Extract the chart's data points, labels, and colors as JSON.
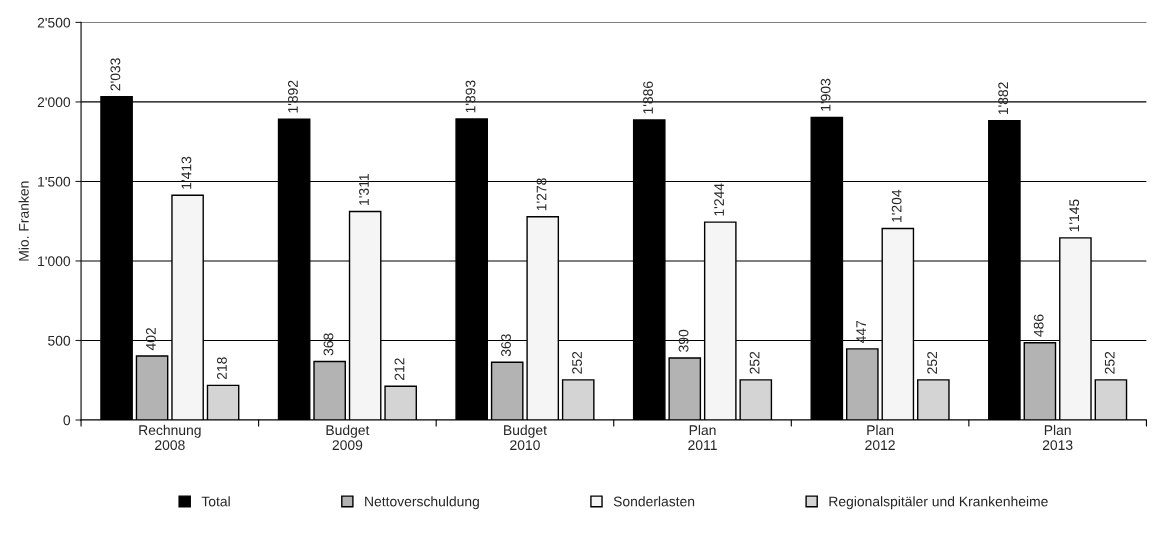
{
  "chart_data": {
    "type": "bar",
    "ylabel": "Mio. Franken",
    "categories": [
      "Rechnung\n2008",
      "Budget\n2009",
      "Budget\n2010",
      "Plan\n2011",
      "Plan\n2012",
      "Plan\n2013"
    ],
    "series": [
      {
        "name": "Total",
        "color": "#000000",
        "values": [
          2033,
          1892,
          1893,
          1886,
          1903,
          1882
        ],
        "value_labels": [
          "2'033",
          "1'892",
          "1'893",
          "1'886",
          "1'903",
          "1'882"
        ]
      },
      {
        "name": "Nettoverschuldung",
        "color": "#b3b3b3",
        "values": [
          402,
          368,
          363,
          390,
          447,
          486
        ],
        "value_labels": [
          "402",
          "368",
          "363",
          "390",
          "447",
          "486"
        ]
      },
      {
        "name": "Sonderlasten",
        "color": "#f5f5f5",
        "values": [
          1413,
          1311,
          1278,
          1244,
          1204,
          1145
        ],
        "value_labels": [
          "1'413",
          "1'311",
          "1'278",
          "1'244",
          "1'204",
          "1'145"
        ]
      },
      {
        "name": "Regionalspitäler und Krankenheime",
        "color": "#d4d4d4",
        "values": [
          218,
          212,
          252,
          252,
          252,
          252
        ],
        "value_labels": [
          "218",
          "212",
          "252",
          "252",
          "252",
          "252"
        ]
      }
    ],
    "ylim": [
      0,
      2500
    ],
    "yticks": [
      0,
      {
        "value": 500,
        "label": "500"
      },
      {
        "value": 1000,
        "label": "1'000"
      },
      {
        "value": 1500,
        "label": "1'500"
      },
      {
        "value": 2000,
        "label": "2'000"
      },
      {
        "value": 2500,
        "label": "2'500"
      }
    ],
    "grid": "y",
    "legend": "bottom"
  }
}
